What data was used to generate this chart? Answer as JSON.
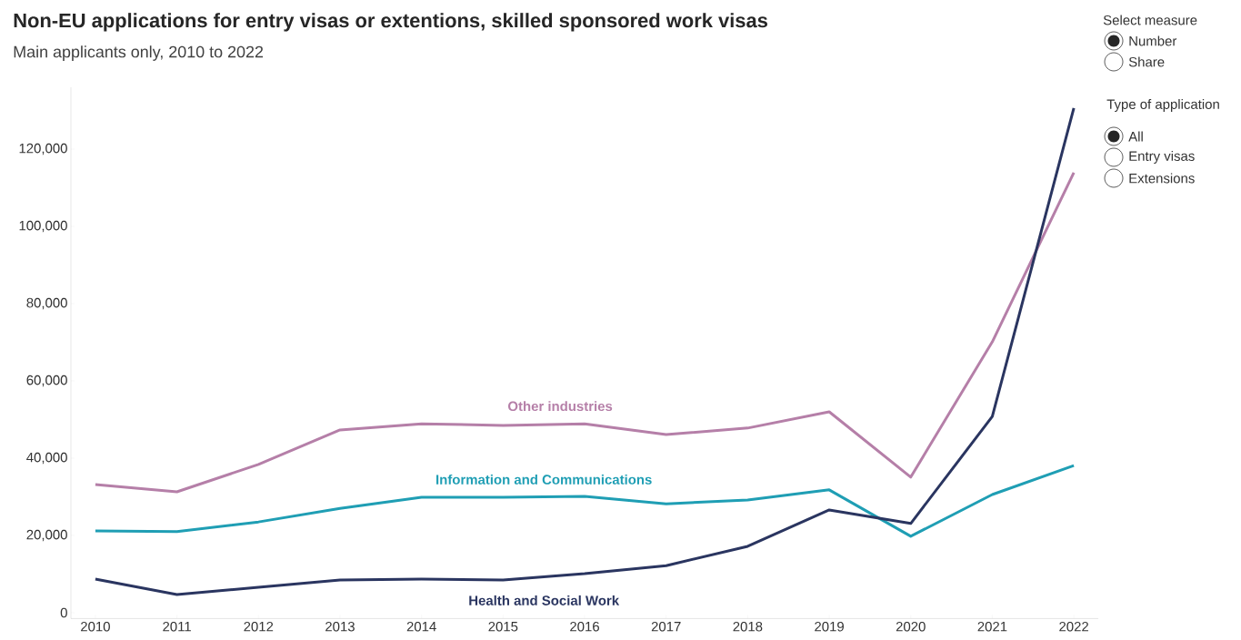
{
  "chart_data": {
    "type": "line",
    "title": "Non-EU applications for entry visas or extentions, skilled sponsored work visas",
    "subtitle": "Main applicants only, 2010 to 2022",
    "x": [
      2010,
      2011,
      2012,
      2013,
      2014,
      2015,
      2016,
      2017,
      2018,
      2019,
      2020,
      2021,
      2022
    ],
    "series": [
      {
        "name": "Other industries",
        "color": "#b57fa8",
        "values": [
          33200,
          31300,
          38400,
          47300,
          48900,
          48500,
          48900,
          46100,
          47800,
          52000,
          35100,
          70100,
          113900
        ]
      },
      {
        "name": "Information and Communications",
        "color": "#1f9eb4",
        "values": [
          21200,
          21000,
          23500,
          27000,
          29900,
          29900,
          30100,
          28200,
          29200,
          31800,
          19800,
          30600,
          38100
        ]
      },
      {
        "name": "Health and Social Work",
        "color": "#2a3560",
        "values": [
          8700,
          4700,
          6600,
          8500,
          8700,
          8500,
          10100,
          12200,
          17200,
          26600,
          23100,
          50800,
          130600
        ]
      }
    ],
    "xticks": [
      2010,
      2011,
      2012,
      2013,
      2014,
      2015,
      2016,
      2017,
      2018,
      2019,
      2020,
      2021,
      2022
    ],
    "xlim": [
      2009.7,
      2022.3
    ],
    "ylim": [
      -1500,
      136000
    ],
    "yticks": [
      {
        "value": 0,
        "label": "0"
      },
      {
        "value": 20000,
        "label": "20,000"
      },
      {
        "value": 40000,
        "label": "40,000"
      },
      {
        "value": 60000,
        "label": "60,000"
      },
      {
        "value": 80000,
        "label": "80,000"
      },
      {
        "value": 100000,
        "label": "100,000"
      },
      {
        "value": 120000,
        "label": "120,000"
      }
    ],
    "marker": "none",
    "line_style": "solid",
    "annotations": [
      "Select measure",
      "Number",
      "Share",
      "Type of application",
      "All",
      "Entry visas",
      "Extensions"
    ]
  }
}
